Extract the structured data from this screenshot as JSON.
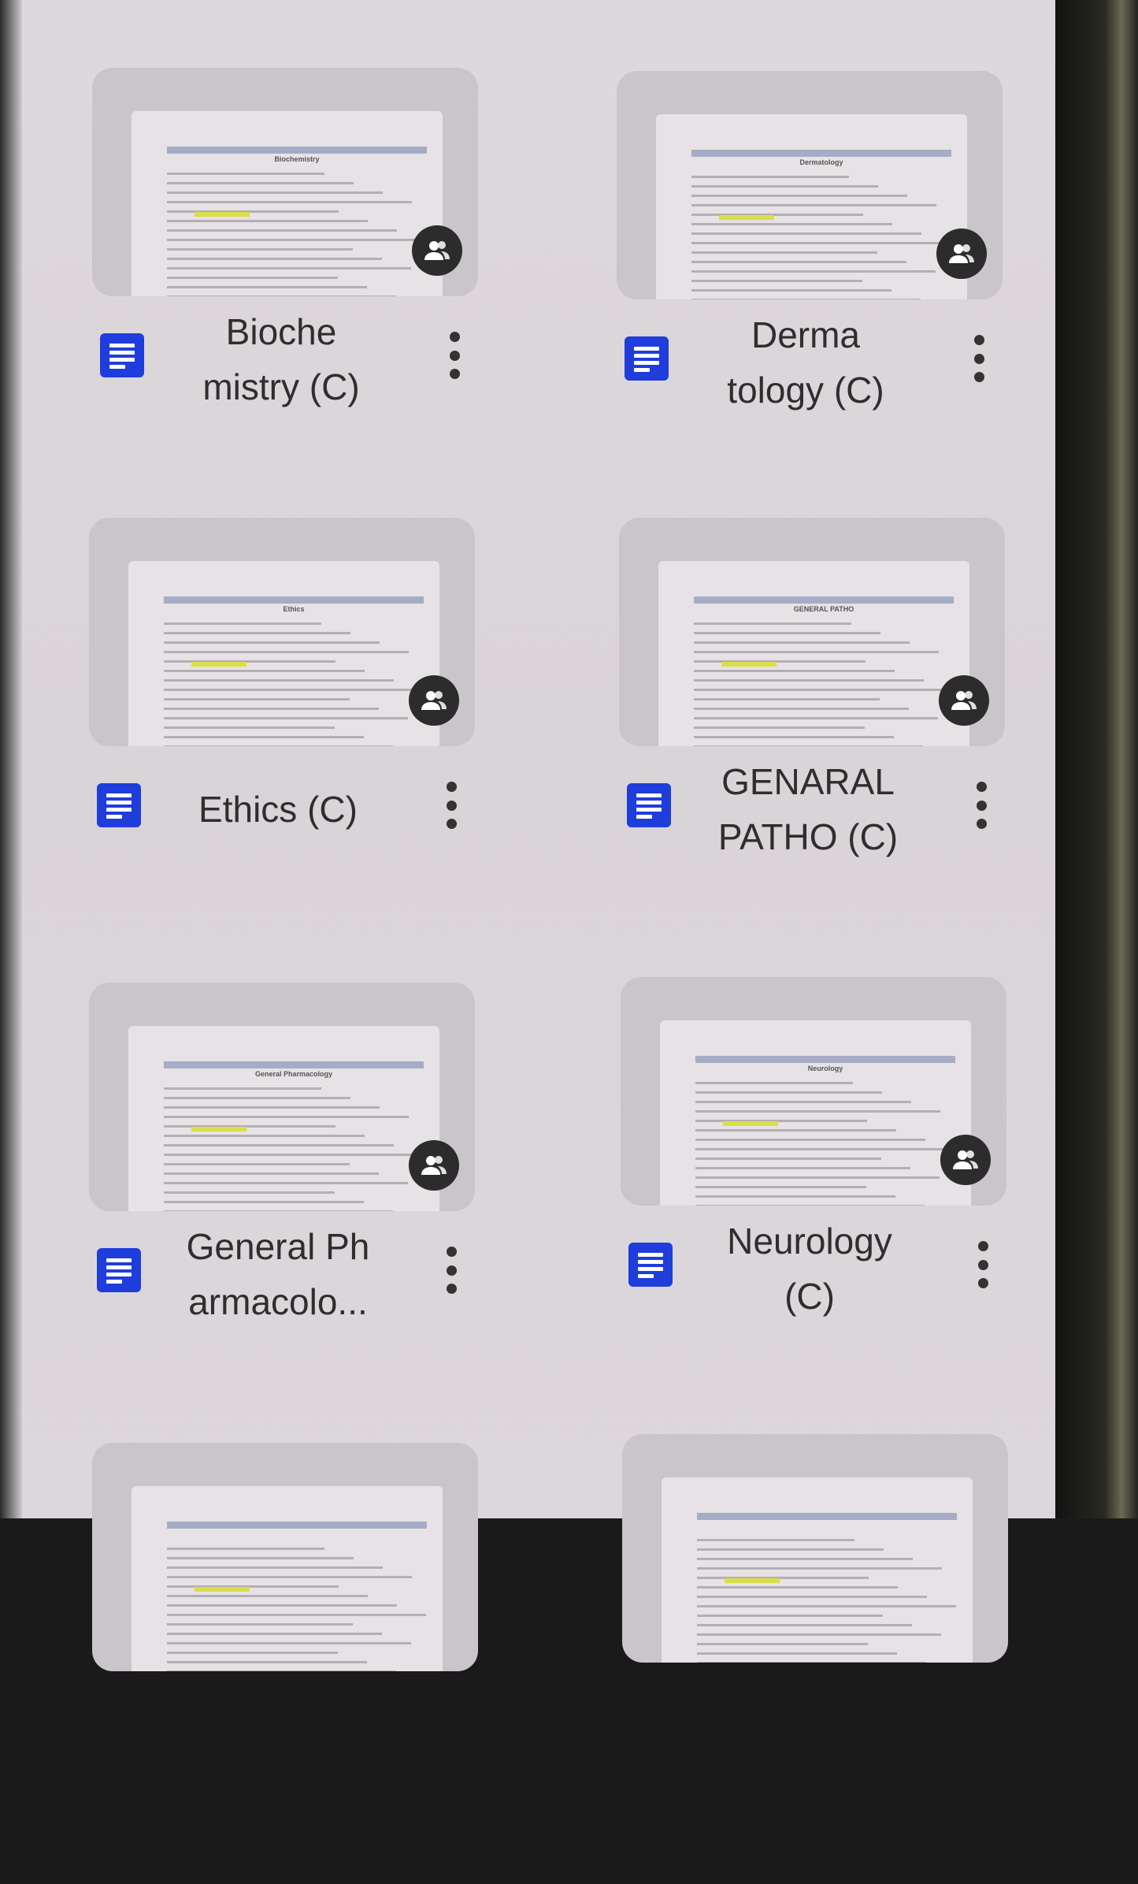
{
  "files": [
    {
      "title": "Bioche\nmistry (C)",
      "thumb_heading": "Biochemistry",
      "type_icon": "google-docs-icon",
      "shared": true
    },
    {
      "title": "Derma\ntology (C)",
      "thumb_heading": "Dermatology",
      "type_icon": "google-docs-icon",
      "shared": true
    },
    {
      "title": "Ethics (C)",
      "thumb_heading": "Ethics",
      "type_icon": "google-docs-icon",
      "shared": true
    },
    {
      "title": "GENARAL\nPATHO (C)",
      "thumb_heading": "GENERAL PATHO",
      "type_icon": "google-docs-icon",
      "shared": true
    },
    {
      "title": "General Ph\narmacolo...",
      "thumb_heading": "General Pharmacology",
      "type_icon": "google-docs-icon",
      "shared": true
    },
    {
      "title": "Neurology\n(C)",
      "thumb_heading": "Neurology",
      "type_icon": "google-docs-icon",
      "shared": true
    }
  ],
  "colors": {
    "docs_icon": "#1f3ddb",
    "share_badge": "#2c2c2c",
    "background": "#dcd7db"
  }
}
